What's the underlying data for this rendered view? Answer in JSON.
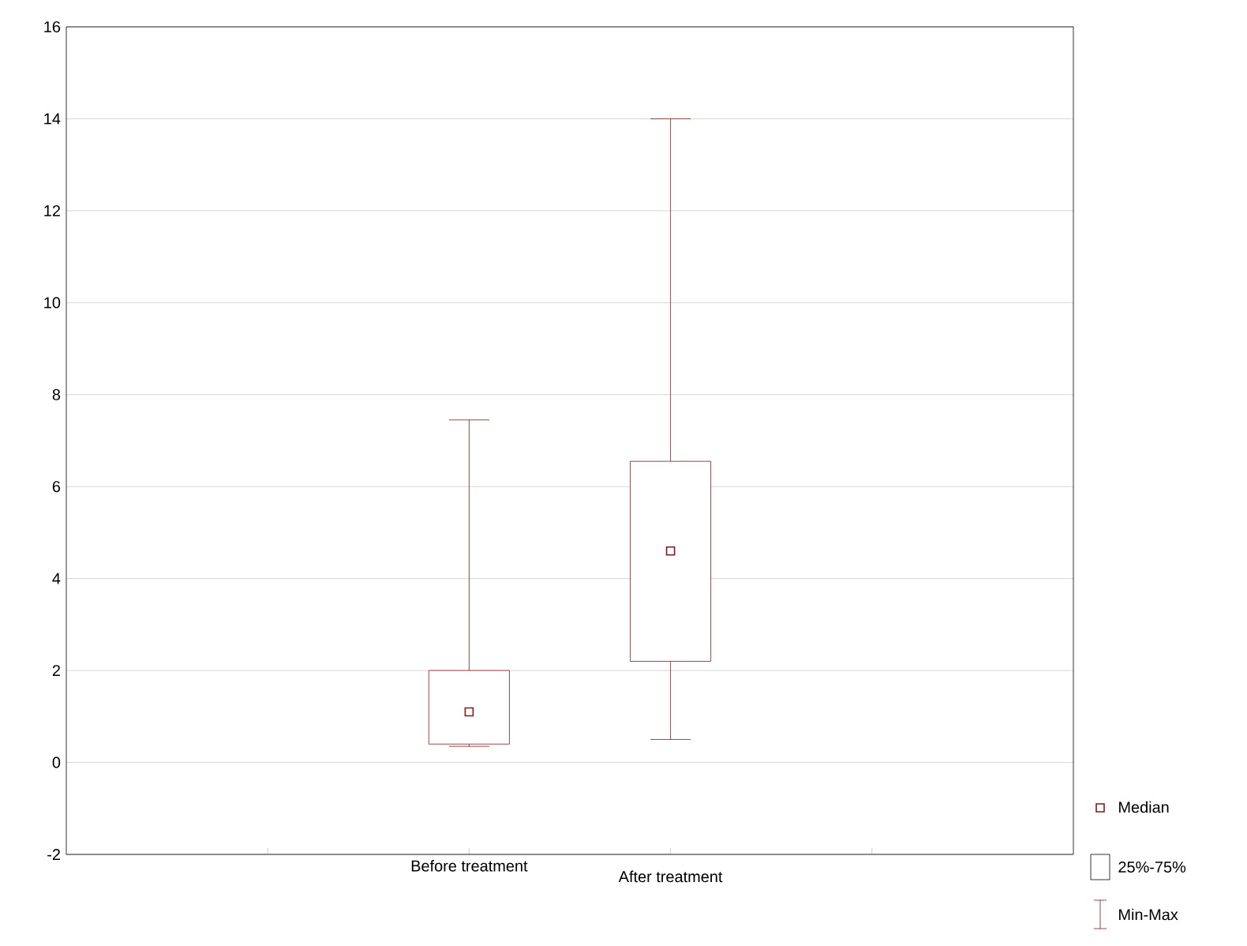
{
  "chart_data": {
    "type": "box",
    "categories": [
      "Before treatment",
      "After treatment"
    ],
    "boxes": [
      {
        "low": 0.35,
        "q1": 0.4,
        "median": 1.1,
        "q3": 2.0,
        "high": 7.45
      },
      {
        "low": 0.5,
        "q1": 2.2,
        "median": 4.6,
        "q3": 6.55,
        "high": 14.0
      }
    ],
    "color": "#7f1a1a",
    "ylim": [
      -2,
      16
    ],
    "yticks": [
      -2,
      0,
      2,
      4,
      6,
      8,
      10,
      12,
      14,
      16
    ],
    "grid": "y",
    "marker": "square",
    "annotations": [
      "Median",
      "25%-75%",
      "Min-Max"
    ]
  }
}
